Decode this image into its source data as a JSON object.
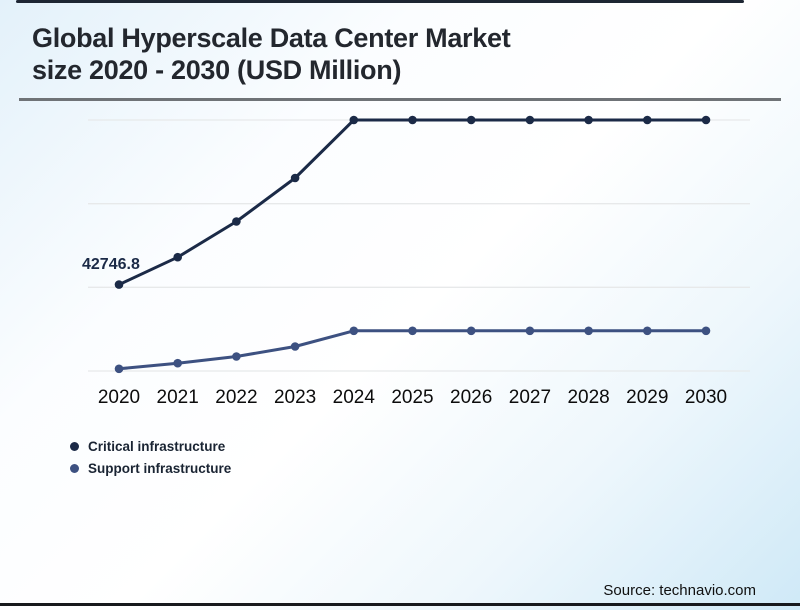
{
  "header": {
    "title_line1": "Global Hyperscale Data Center Market",
    "title_line2": "size 2020 - 2030 (USD Million)"
  },
  "footer": {
    "source": "Source: technavio.com"
  },
  "colors": {
    "critical": "#1b2a47",
    "support": "#3d5181",
    "grid": "#e7e9ea",
    "title": "#23272e",
    "rule": "#6f7377",
    "top_border": "#1d2633",
    "bottom_border": "#17191d",
    "axis_label": "#0c0c0c",
    "background_edge": "#cfe9f7"
  },
  "chart_data": {
    "type": "line",
    "title": "Global Hyperscale Data Center Market size 2020 - 2030 (USD Million)",
    "categories": [
      "2020",
      "2021",
      "2022",
      "2023",
      "2024",
      "2025",
      "2026",
      "2027",
      "2028",
      "2029",
      "2030"
    ],
    "series": [
      {
        "name": "Critical infrastructure",
        "color": "#1b2a47",
        "values": [
          42746.8,
          45200,
          48400,
          52300,
          57500,
          57500,
          57500,
          57500,
          57500,
          57500,
          57500
        ],
        "values_estimated": true
      },
      {
        "name": "Support infrastructure",
        "color": "#3d5181",
        "values": [
          35200,
          35700,
          36300,
          37200,
          38600,
          38600,
          38600,
          38600,
          38600,
          38600,
          38600
        ],
        "values_estimated": true
      }
    ],
    "data_label": {
      "text": "42746.8",
      "series": "Critical infrastructure",
      "category": "2020"
    },
    "xlabel": "",
    "ylabel": "",
    "ylim": [
      35000,
      57500
    ],
    "grid_values": [
      35000,
      42500,
      50000,
      57500
    ],
    "grid": "horizontal",
    "y_axis_shown": false,
    "legend_position": "bottom-left"
  }
}
